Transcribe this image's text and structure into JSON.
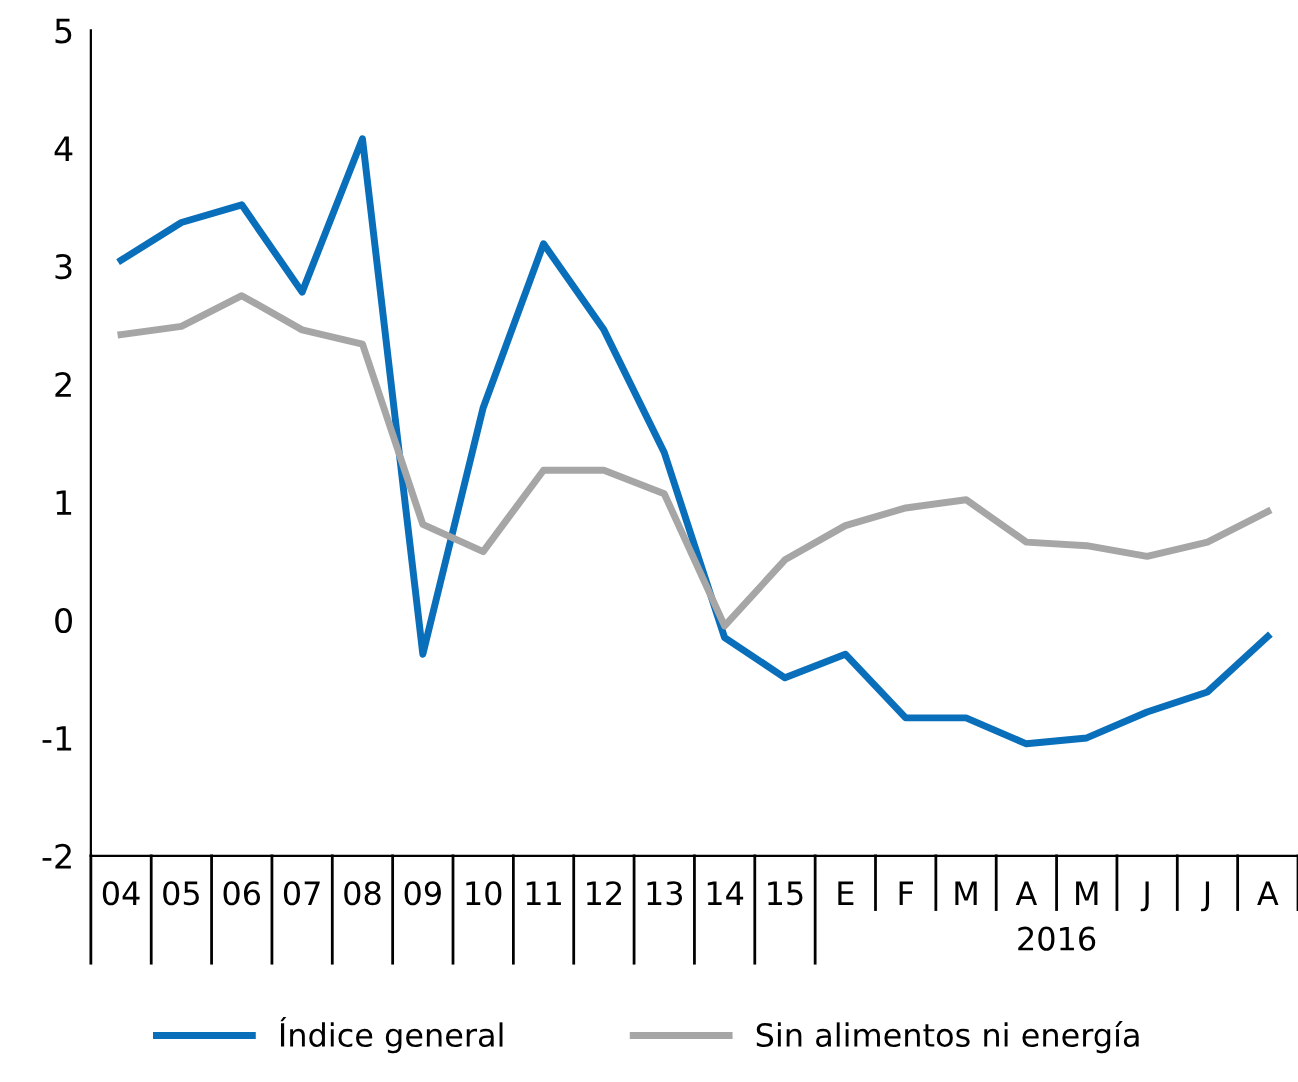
{
  "chart_data": {
    "type": "line",
    "categories": [
      "04",
      "05",
      "06",
      "07",
      "08",
      "09",
      "10",
      "11",
      "12",
      "13",
      "14",
      "15",
      "E",
      "F",
      "M",
      "A",
      "M",
      "J",
      "J",
      "A"
    ],
    "series": [
      {
        "name": "Índice general",
        "color": "#0a6fba",
        "values": [
          3.05,
          3.37,
          3.52,
          2.78,
          4.08,
          -0.29,
          1.8,
          3.19,
          2.46,
          1.42,
          -0.15,
          -0.49,
          -0.29,
          -0.83,
          -0.83,
          -1.05,
          -1.0,
          -0.78,
          -0.61,
          -0.14
        ]
      },
      {
        "name": "Sin alimentos ni energía",
        "color": "#a6a6a6",
        "values": [
          2.42,
          2.49,
          2.75,
          2.46,
          2.34,
          0.81,
          0.58,
          1.27,
          1.27,
          1.07,
          -0.05,
          0.51,
          0.8,
          0.95,
          1.02,
          0.66,
          0.63,
          0.54,
          0.66,
          0.92
        ]
      }
    ],
    "ylim": [
      -2,
      5
    ],
    "yticks": [
      -2,
      -1,
      0,
      1,
      2,
      3,
      4,
      5
    ],
    "annotations": [
      "2016"
    ],
    "legend": "bottom",
    "grid": false,
    "marker": "none",
    "line_style": "solid"
  }
}
